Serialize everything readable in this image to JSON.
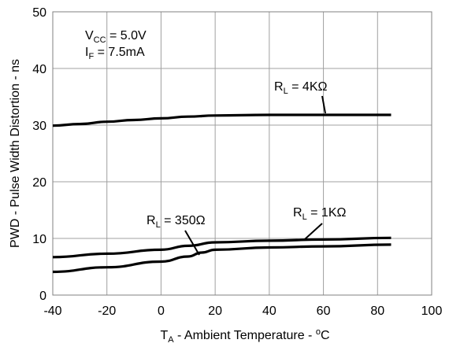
{
  "chart_data": {
    "type": "line",
    "xlabel_main": "T",
    "xlabel_sub": "A",
    "xlabel_rest": " - Ambient Temperature - ",
    "xlabel_deg": "o",
    "xlabel_unit": "C",
    "ylabel": "PWD - Pulse Width Distortion - ns",
    "xlim": [
      -40,
      100
    ],
    "ylim": [
      0,
      50
    ],
    "xticks": [
      -40,
      -20,
      0,
      20,
      40,
      60,
      80,
      100
    ],
    "yticks": [
      0,
      10,
      20,
      30,
      40,
      50
    ],
    "grid": true,
    "conditions": {
      "vcc_main": "V",
      "vcc_sub": "CC",
      "vcc_value": " = 5.0V",
      "if_main": "I",
      "if_sub": "F",
      "if_value": " = 7.5mA"
    },
    "series": [
      {
        "label_main": "R",
        "label_sub": "L",
        "label_value": " = 4KΩ",
        "x": [
          -40,
          -30,
          -20,
          -10,
          0,
          10,
          20,
          40,
          60,
          85
        ],
        "y": [
          29.9,
          30.2,
          30.6,
          30.9,
          31.2,
          31.5,
          31.7,
          31.8,
          31.8,
          31.8
        ]
      },
      {
        "label_main": "R",
        "label_sub": "L",
        "label_value": " = 1KΩ",
        "x": [
          -40,
          -20,
          0,
          10,
          20,
          40,
          60,
          85
        ],
        "y": [
          6.7,
          7.3,
          8.0,
          8.7,
          9.3,
          9.6,
          9.8,
          10.1
        ]
      },
      {
        "label_main": "R",
        "label_sub": "L",
        "label_value": " = 350Ω",
        "x": [
          -40,
          -20,
          0,
          10,
          15,
          20,
          40,
          60,
          85
        ],
        "y": [
          4.1,
          4.9,
          5.9,
          6.8,
          7.5,
          8.0,
          8.4,
          8.6,
          8.9
        ]
      }
    ]
  }
}
